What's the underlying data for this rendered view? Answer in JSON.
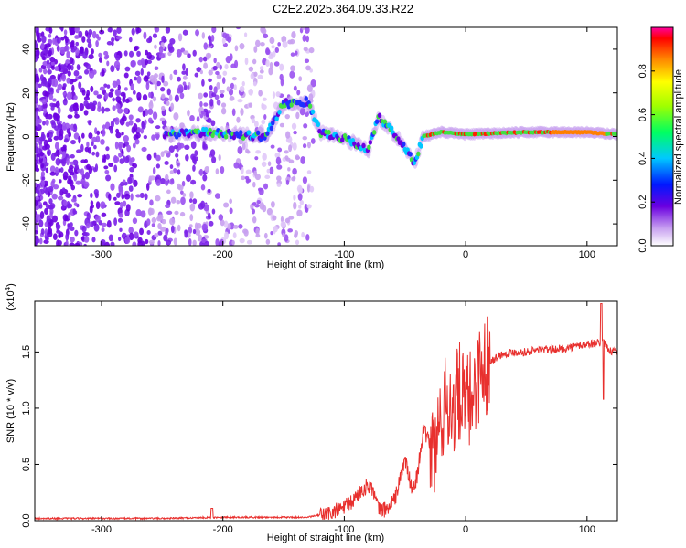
{
  "title": "C2E2.2025.364.09.33.R22",
  "chart_data": [
    {
      "type": "heatmap",
      "xlabel": "Height of straight line (km)",
      "ylabel": "Frequency (Hz)",
      "xlim": [
        -355,
        125
      ],
      "ylim": [
        -50,
        50
      ],
      "xticks": [
        -300,
        -200,
        -100,
        0,
        100
      ],
      "yticks": [
        -40,
        -20,
        0,
        20,
        40
      ],
      "colorbar": {
        "label": "Normalized spectral amplitude",
        "range": [
          0,
          1
        ],
        "ticks": [
          0.0,
          0.2,
          0.4,
          0.6,
          0.8
        ],
        "tick_labels": [
          "0.0",
          "0.2",
          "0.4",
          "0.6",
          "0.8"
        ],
        "colormap": "rainbow"
      },
      "signal_track": [
        {
          "x": -245,
          "y": 1
        },
        {
          "x": -220,
          "y": 2
        },
        {
          "x": -190,
          "y": 1
        },
        {
          "x": -165,
          "y": 0
        },
        {
          "x": -150,
          "y": 15
        },
        {
          "x": -130,
          "y": 16
        },
        {
          "x": -120,
          "y": 2
        },
        {
          "x": -100,
          "y": -1
        },
        {
          "x": -80,
          "y": -6
        },
        {
          "x": -72,
          "y": 9
        },
        {
          "x": -60,
          "y": 2
        },
        {
          "x": -50,
          "y": -5
        },
        {
          "x": -42,
          "y": -12
        },
        {
          "x": -35,
          "y": 0
        },
        {
          "x": -20,
          "y": 2
        },
        {
          "x": 0,
          "y": 1
        },
        {
          "x": 50,
          "y": 2
        },
        {
          "x": 100,
          "y": 2
        },
        {
          "x": 125,
          "y": 1
        }
      ]
    },
    {
      "type": "line",
      "xlabel": "Height of straight line (km)",
      "ylabel": "SNR (10 * v/v)",
      "multiplier_label": "(x10",
      "multiplier_exp": "4",
      "multiplier_close": ")",
      "xlim": [
        -355,
        125
      ],
      "ylim": [
        0,
        1.95
      ],
      "xticks": [
        -300,
        -200,
        -100,
        0,
        100
      ],
      "yticks": [
        0.0,
        0.5,
        1.0,
        1.5
      ],
      "ytick_labels": [
        "0.0",
        "0.5",
        "1.0",
        "1.5"
      ],
      "series": [
        {
          "color": "#e8302e",
          "x": [
            -355,
            -250,
            -200,
            -130,
            -110,
            -95,
            -85,
            -78,
            -72,
            -65,
            -58,
            -50,
            -44,
            -40,
            -35,
            -30,
            -25,
            -20,
            -15,
            -10,
            -5,
            0,
            5,
            10,
            20,
            30,
            40,
            50,
            60,
            70,
            80,
            90,
            100,
            110,
            113,
            116,
            120,
            125
          ],
          "values": [
            0.02,
            0.02,
            0.03,
            0.03,
            0.07,
            0.15,
            0.28,
            0.32,
            0.1,
            0.1,
            0.2,
            0.55,
            0.25,
            0.4,
            0.8,
            0.7,
            0.6,
            0.95,
            1.05,
            1.0,
            1.15,
            1.0,
            1.1,
            1.3,
            1.42,
            1.48,
            1.5,
            1.5,
            1.52,
            1.52,
            1.53,
            1.55,
            1.57,
            1.58,
            1.6,
            1.55,
            1.5,
            1.5
          ]
        }
      ]
    }
  ]
}
